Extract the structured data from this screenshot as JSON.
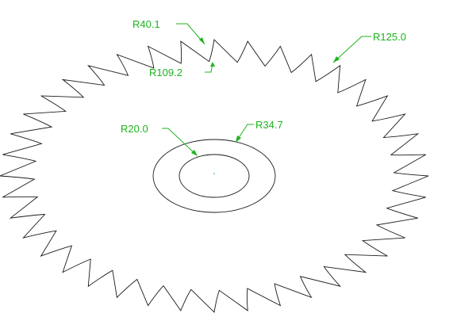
{
  "drawing": {
    "line_color": "#1a1a1a",
    "dimension_color": "#1db31d",
    "blade": {
      "teeth": 40
    },
    "dimensions": {
      "r_tip": "R125.0",
      "r_gullet_depth": "R40.1",
      "r_root": "R109.2",
      "r_hub_outer": "R34.7",
      "r_bore": "R20.0"
    }
  }
}
